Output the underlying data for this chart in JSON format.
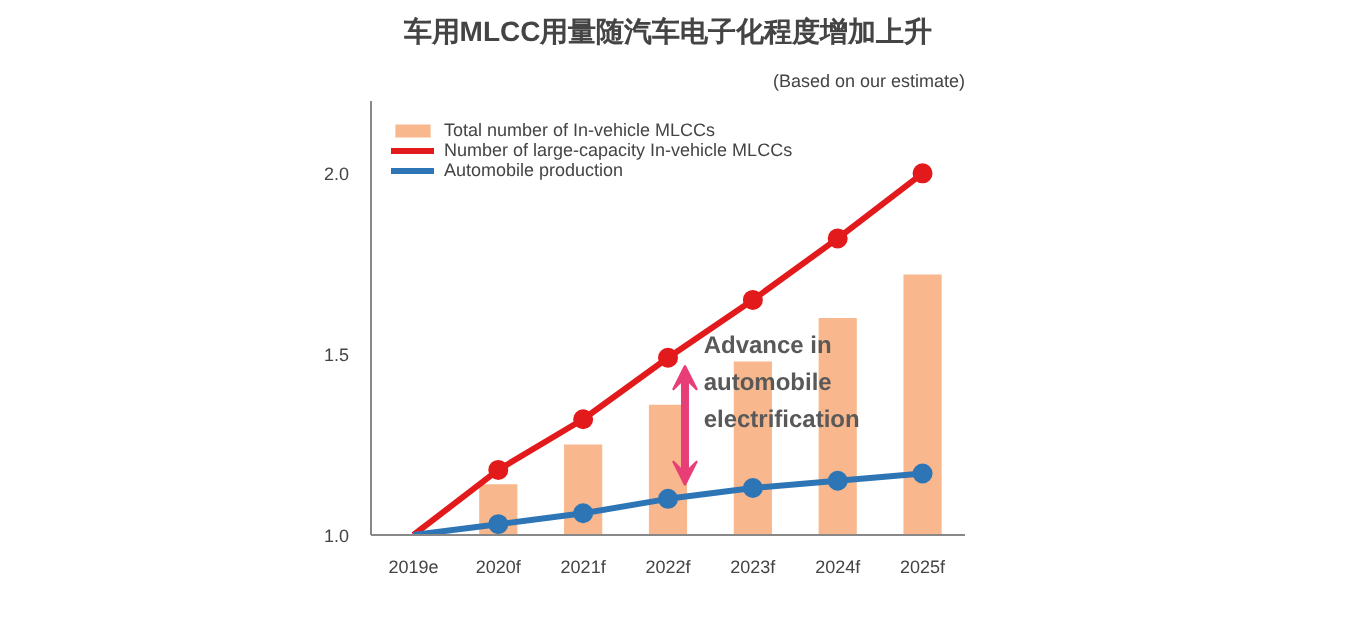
{
  "chart_data": {
    "type": "bar",
    "title": "车用MLCC用量随汽车电子化程度增加上升",
    "categories": [
      "2019e",
      "2020f",
      "2021f",
      "2022f",
      "2023f",
      "2024f",
      "2025f"
    ],
    "series": [
      {
        "name": "Total number of In-vehicle MLCCs",
        "color": "#f8b78c",
        "values": [
          null,
          1.14,
          1.25,
          1.36,
          1.48,
          1.6,
          1.72
        ]
      },
      {
        "name": "Number of large-capacity In-vehicle MLCCs",
        "type": "line",
        "color": "#e31a1c",
        "values": [
          1.0,
          1.18,
          1.32,
          1.49,
          1.65,
          1.82,
          2.0
        ]
      },
      {
        "name": "Automobile production",
        "type": "line",
        "color": "#2e75b6",
        "values": [
          1.0,
          1.03,
          1.06,
          1.1,
          1.13,
          1.15,
          1.17
        ]
      }
    ],
    "ylim": [
      1.0,
      2.2
    ],
    "yticks": [
      {
        "value": 1,
        "label": "1.0"
      },
      1.5,
      {
        "value": 2,
        "label": "2.0"
      }
    ],
    "annotations": [
      "(Based on our estimate)",
      "Advance in automobile electrification"
    ],
    "marker": "circle",
    "line_style": "solid",
    "legend": "top left",
    "grid": false
  }
}
